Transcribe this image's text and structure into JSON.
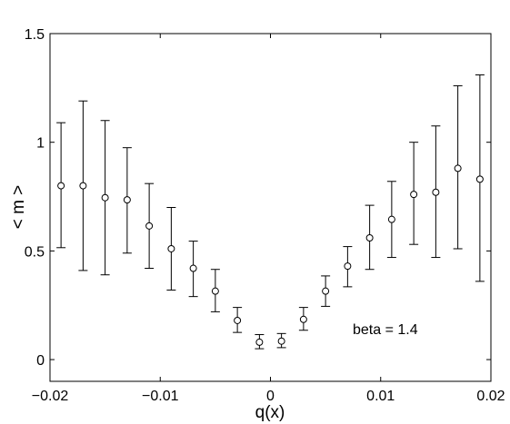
{
  "chart_data": {
    "type": "scatter",
    "title": "",
    "xlabel": "q(x)",
    "ylabel": "< m >",
    "xlim": [
      -0.02,
      0.02
    ],
    "ylim": [
      -0.1,
      1.5
    ],
    "xticks": [
      -0.02,
      -0.01,
      0,
      0.01,
      0.02
    ],
    "xtick_labels": [
      "−0.02",
      "−0.01",
      "0",
      "0.01",
      "0.02"
    ],
    "yticks": [
      0,
      0.5,
      1,
      1.5
    ],
    "ytick_labels": [
      "0",
      "0.5",
      "1",
      "1.5"
    ],
    "grid": false,
    "marker": "open-circle",
    "annotation": "beta = 1.4",
    "series": [
      {
        "x": [
          -0.019,
          -0.017,
          -0.015,
          -0.013,
          -0.011,
          -0.009,
          -0.007,
          -0.005,
          -0.003,
          -0.001,
          0.001,
          0.003,
          0.005,
          0.007,
          0.009,
          0.011,
          0.013,
          0.015,
          0.017,
          0.019
        ],
        "y": [
          0.8,
          0.8,
          0.745,
          0.735,
          0.615,
          0.51,
          0.42,
          0.315,
          0.18,
          0.08,
          0.085,
          0.185,
          0.315,
          0.43,
          0.56,
          0.645,
          0.76,
          0.77,
          0.88,
          0.83
        ],
        "err_low": [
          0.515,
          0.41,
          0.39,
          0.49,
          0.42,
          0.32,
          0.29,
          0.22,
          0.125,
          0.05,
          0.055,
          0.135,
          0.245,
          0.335,
          0.415,
          0.47,
          0.53,
          0.47,
          0.51,
          0.36
        ],
        "err_high": [
          1.09,
          1.19,
          1.1,
          0.975,
          0.81,
          0.7,
          0.545,
          0.415,
          0.24,
          0.115,
          0.12,
          0.24,
          0.385,
          0.52,
          0.71,
          0.82,
          1.0,
          1.075,
          1.26,
          1.31
        ]
      }
    ]
  }
}
